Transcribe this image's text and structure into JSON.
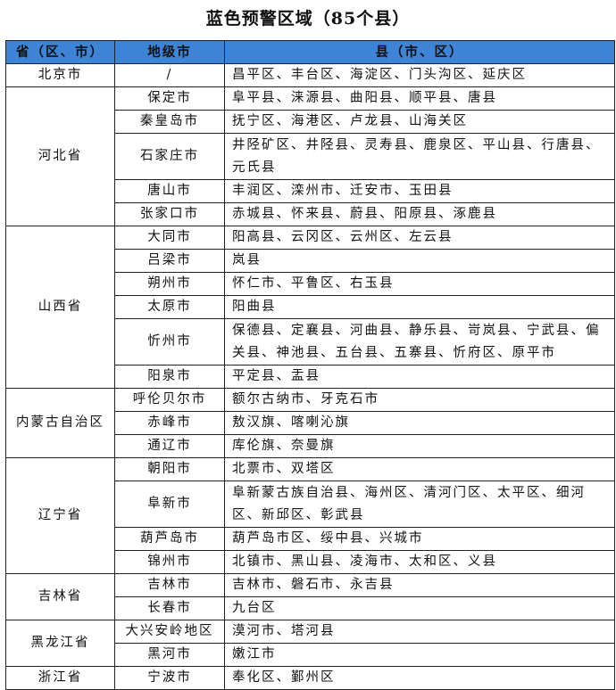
{
  "title": "蓝色预警区域（85个县）",
  "colors": {
    "header_bg": "#3d84d6"
  },
  "headers": [
    "省（区、市）",
    "地级市",
    "县（市、区）"
  ],
  "groups": [
    {
      "province": "北京市",
      "rows": [
        {
          "city": "/",
          "counties": "昌平区、丰台区、海淀区、门头沟区、延庆区"
        }
      ]
    },
    {
      "province": "河北省",
      "rows": [
        {
          "city": "保定市",
          "counties": "阜平县、涞源县、曲阳县、顺平县、唐县"
        },
        {
          "city": "秦皇岛市",
          "counties": "抚宁区、海港区、卢龙县、山海关区"
        },
        {
          "city": "石家庄市",
          "counties": "井陉矿区、井陉县、灵寿县、鹿泉区、平山县、行唐县、元氏县"
        },
        {
          "city": "唐山市",
          "counties": "丰润区、滦州市、迁安市、玉田县"
        },
        {
          "city": "张家口市",
          "counties": "赤城县、怀来县、蔚县、阳原县、涿鹿县"
        }
      ]
    },
    {
      "province": "山西省",
      "rows": [
        {
          "city": "大同市",
          "counties": "阳高县、云冈区、云州区、左云县"
        },
        {
          "city": "吕梁市",
          "counties": "岚县"
        },
        {
          "city": "朔州市",
          "counties": "怀仁市、平鲁区、右玉县"
        },
        {
          "city": "太原市",
          "counties": "阳曲县"
        },
        {
          "city": "忻州市",
          "counties": "保德县、定襄县、河曲县、静乐县、岢岚县、宁武县、偏关县、神池县、五台县、五寨县、忻府区、原平市"
        },
        {
          "city": "阳泉市",
          "counties": "平定县、盂县"
        }
      ]
    },
    {
      "province": "内蒙古自治区",
      "rows": [
        {
          "city": "呼伦贝尔市",
          "counties": "额尔古纳市、牙克石市"
        },
        {
          "city": "赤峰市",
          "counties": "敖汉旗、喀喇沁旗"
        },
        {
          "city": "通辽市",
          "counties": "库伦旗、奈曼旗"
        }
      ]
    },
    {
      "province": "辽宁省",
      "rows": [
        {
          "city": "朝阳市",
          "counties": "北票市、双塔区"
        },
        {
          "city": "阜新市",
          "counties": "阜新蒙古族自治县、海州区、清河门区、太平区、细河区、新邱区、彰武县"
        },
        {
          "city": "葫芦岛市",
          "counties": "葫芦岛市区、绥中县、兴城市"
        },
        {
          "city": "锦州市",
          "counties": "北镇市、黑山县、凌海市、太和区、义县"
        }
      ]
    },
    {
      "province": "吉林省",
      "rows": [
        {
          "city": "吉林市",
          "counties": "吉林市、磐石市、永吉县"
        },
        {
          "city": "长春市",
          "counties": "九台区"
        }
      ]
    },
    {
      "province": "黑龙江省",
      "rows": [
        {
          "city": "大兴安岭地区",
          "counties": "漠河市、塔河县"
        },
        {
          "city": "黑河市",
          "counties": "嫩江市"
        }
      ]
    },
    {
      "province": "浙江省",
      "rows": [
        {
          "city": "宁波市",
          "counties": "奉化区、鄞州区"
        }
      ]
    }
  ]
}
